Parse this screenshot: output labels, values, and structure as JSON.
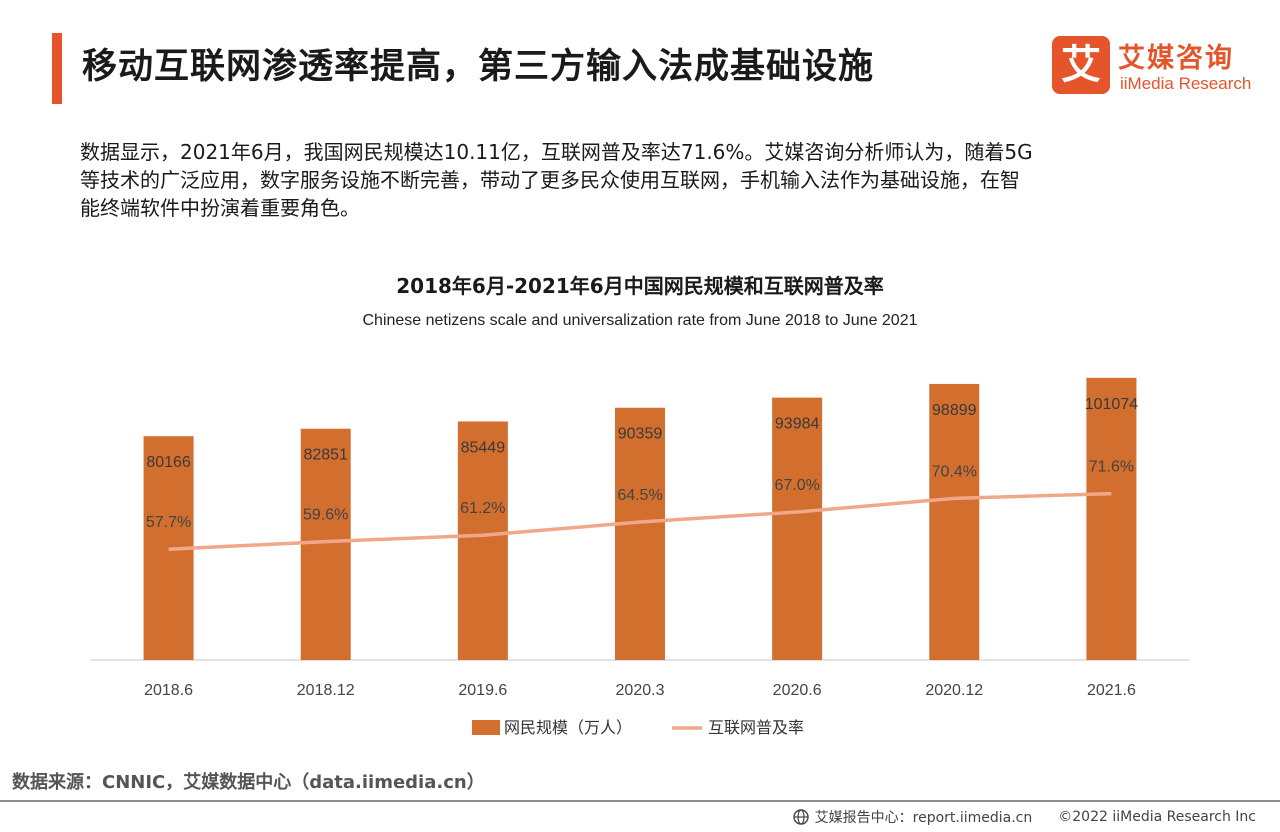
{
  "header": {
    "title": "移动互联网渗透率提高，第三方输入法成基础设施",
    "logo_mark": "艾",
    "logo_cn": "艾媒咨询",
    "logo_en": "iiMedia Research"
  },
  "intro": {
    "line1": "数据显示，2021年6月，我国网民规模达10.11亿，互联网普及率达71.6%。艾媒咨询分析师认为，随着5G",
    "line2": "等技术的广泛应用，数字服务设施不断完善，带动了更多民众使用互联网，手机输入法作为基础设施，在智",
    "line3": "能终端软件中扮演着重要角色。"
  },
  "chart_data": {
    "type": "bar",
    "title": "2018年6月-2021年6月中国网民规模和互联网普及率",
    "subtitle": "Chinese netizens scale and universalization rate from June 2018 to June 2021",
    "categories": [
      "2018.6",
      "2018.12",
      "2019.6",
      "2020.3",
      "2020.6",
      "2020.12",
      "2021.6"
    ],
    "series": [
      {
        "name": "网民规模（万人）",
        "type": "bar",
        "color": "#d26e2e",
        "values": [
          80166,
          82851,
          85449,
          90359,
          93984,
          98899,
          101074
        ]
      },
      {
        "name": "互联网普及率",
        "type": "line",
        "color": "#f0a88a",
        "values": [
          57.7,
          59.6,
          61.2,
          64.5,
          67.0,
          70.4,
          71.6
        ],
        "labels": [
          "57.7%",
          "59.6%",
          "61.2%",
          "64.5%",
          "67.0%",
          "70.4%",
          "71.6%"
        ]
      }
    ],
    "bar_axis_range": [
      0,
      120000
    ],
    "line_axis_range": [
      0,
      100
    ],
    "grid": false,
    "legend_position": "bottom"
  },
  "source": "数据来源：CNNIC，艾媒数据中心（data.iimedia.cn）",
  "footer": {
    "report": "艾媒报告中心：report.iimedia.cn",
    "copyright": "©2022 iiMedia Research Inc"
  }
}
